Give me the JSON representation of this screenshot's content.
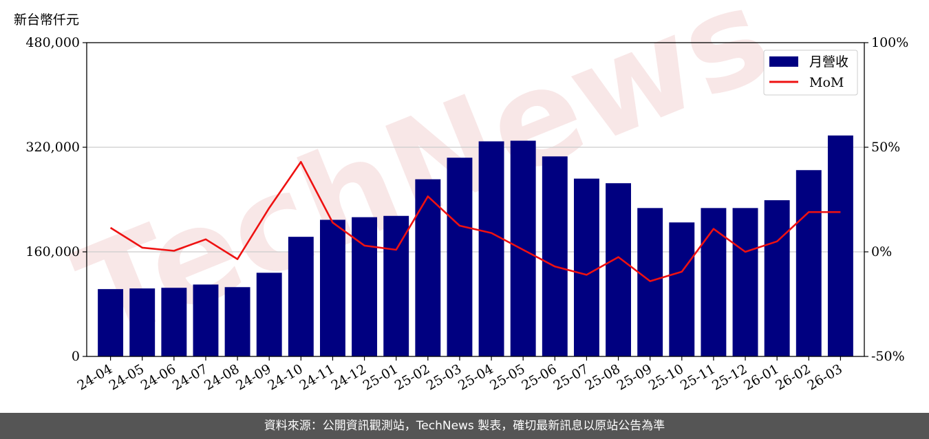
{
  "unit_label": "新台幣仟元",
  "footer": "資料來源：公開資訊觀測站，TechNews 製表，確切最新訊息以原站公告為準",
  "watermark": "TechNews",
  "colors": {
    "bar": "#000080",
    "line": "#ee1111",
    "grid": "#cccccc",
    "footer_bg": "#555555"
  },
  "chart_data": {
    "type": "bar",
    "categories": [
      "24-04",
      "24-05",
      "24-06",
      "24-07",
      "24-08",
      "24-09",
      "24-10",
      "24-11",
      "24-12",
      "25-01",
      "25-02",
      "25-03",
      "25-04",
      "25-05",
      "25-06",
      "25-07",
      "25-08",
      "25-09",
      "25-10",
      "25-11",
      "25-12",
      "26-01",
      "26-02",
      "26-03"
    ],
    "series": [
      {
        "name": "月營收",
        "type": "bar",
        "axis": "left",
        "values": [
          103000,
          104000,
          105000,
          110000,
          106000,
          128000,
          183000,
          209000,
          213000,
          215000,
          271000,
          304000,
          329000,
          330000,
          306000,
          272000,
          265000,
          227000,
          205000,
          227000,
          227000,
          239000,
          285000,
          338000
        ]
      },
      {
        "name": "MoM",
        "type": "line",
        "axis": "right",
        "values": [
          11.5,
          2,
          0.5,
          6,
          -3.5,
          21,
          43,
          14,
          3,
          1,
          26.5,
          12.5,
          9,
          1,
          -7,
          -11,
          -2.5,
          -14,
          -9.5,
          11,
          0,
          5,
          19,
          19
        ]
      }
    ],
    "y_left": {
      "lim": [
        0,
        480000
      ],
      "ticks": [
        "0",
        "160,000",
        "320,000",
        "480,000"
      ],
      "tick_values": [
        0,
        160000,
        320000,
        480000
      ]
    },
    "y_right": {
      "lim": [
        -50,
        100
      ],
      "ticks": [
        "-50%",
        "0%",
        "50%",
        "100%"
      ],
      "tick_values": [
        -50,
        0,
        50,
        100
      ]
    },
    "grid": "horizontal",
    "legend": "top-right"
  }
}
